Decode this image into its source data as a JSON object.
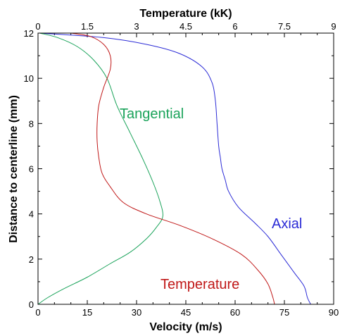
{
  "chart_data": {
    "type": "line",
    "title": "",
    "xlabel": "Velocity (m/s)",
    "x2label": "Temperature (kK)",
    "ylabel": "Distance to centerline (mm)",
    "xlim": [
      0,
      90
    ],
    "x2lim": [
      0,
      9
    ],
    "ylim": [
      0,
      12
    ],
    "xticks": [
      "0",
      "15",
      "30",
      "45",
      "60",
      "75",
      "90"
    ],
    "x2ticks": [
      "0",
      "1.5",
      "3",
      "4.5",
      "6",
      "7.5",
      "9"
    ],
    "yticks": [
      "0",
      "2",
      "4",
      "6",
      "8",
      "10",
      "12"
    ],
    "grid": false,
    "series": [
      {
        "name": "Axial",
        "color": "#2b2bd6",
        "axis": "x",
        "points": [
          [
            83,
            0
          ],
          [
            82,
            0.3
          ],
          [
            81,
            0.8
          ],
          [
            78,
            1.4
          ],
          [
            74,
            2.2
          ],
          [
            70,
            3.0
          ],
          [
            66,
            3.6
          ],
          [
            61,
            4.3
          ],
          [
            58,
            5.0
          ],
          [
            57,
            5.5
          ],
          [
            56,
            6.0
          ],
          [
            55.5,
            6.5
          ],
          [
            55,
            7.0
          ],
          [
            54.5,
            8.0
          ],
          [
            54,
            9.0
          ],
          [
            53,
            9.8
          ],
          [
            50,
            10.5
          ],
          [
            43,
            11.1
          ],
          [
            33,
            11.5
          ],
          [
            20,
            11.8
          ],
          [
            0.5,
            12
          ]
        ]
      },
      {
        "name": "Tangential",
        "color": "#1aa35a",
        "axis": "x",
        "points": [
          [
            0,
            0
          ],
          [
            3,
            0.3
          ],
          [
            8,
            0.7
          ],
          [
            15,
            1.2
          ],
          [
            22,
            1.8
          ],
          [
            28,
            2.3
          ],
          [
            33,
            2.9
          ],
          [
            36,
            3.4
          ],
          [
            38,
            3.9
          ],
          [
            37,
            4.6
          ],
          [
            35,
            5.4
          ],
          [
            32,
            6.4
          ],
          [
            28,
            7.6
          ],
          [
            24,
            8.8
          ],
          [
            21,
            10.0
          ],
          [
            17,
            10.8
          ],
          [
            12,
            11.4
          ],
          [
            6,
            11.8
          ],
          [
            0.5,
            12
          ]
        ]
      },
      {
        "name": "Temperature",
        "color": "#c01818",
        "axis": "x2",
        "points": [
          [
            7.2,
            0
          ],
          [
            7.15,
            0.3
          ],
          [
            7.0,
            0.9
          ],
          [
            6.7,
            1.5
          ],
          [
            6.2,
            2.2
          ],
          [
            5.3,
            2.9
          ],
          [
            4.3,
            3.5
          ],
          [
            3.3,
            4.0
          ],
          [
            2.6,
            4.5
          ],
          [
            2.2,
            5.2
          ],
          [
            1.95,
            5.8
          ],
          [
            1.85,
            6.5
          ],
          [
            1.8,
            7.2
          ],
          [
            1.8,
            8.0
          ],
          [
            1.85,
            8.8
          ],
          [
            2.0,
            9.6
          ],
          [
            2.2,
            10.4
          ],
          [
            2.2,
            11.0
          ],
          [
            2.0,
            11.5
          ],
          [
            1.6,
            11.85
          ],
          [
            1.0,
            12
          ]
        ]
      }
    ]
  }
}
